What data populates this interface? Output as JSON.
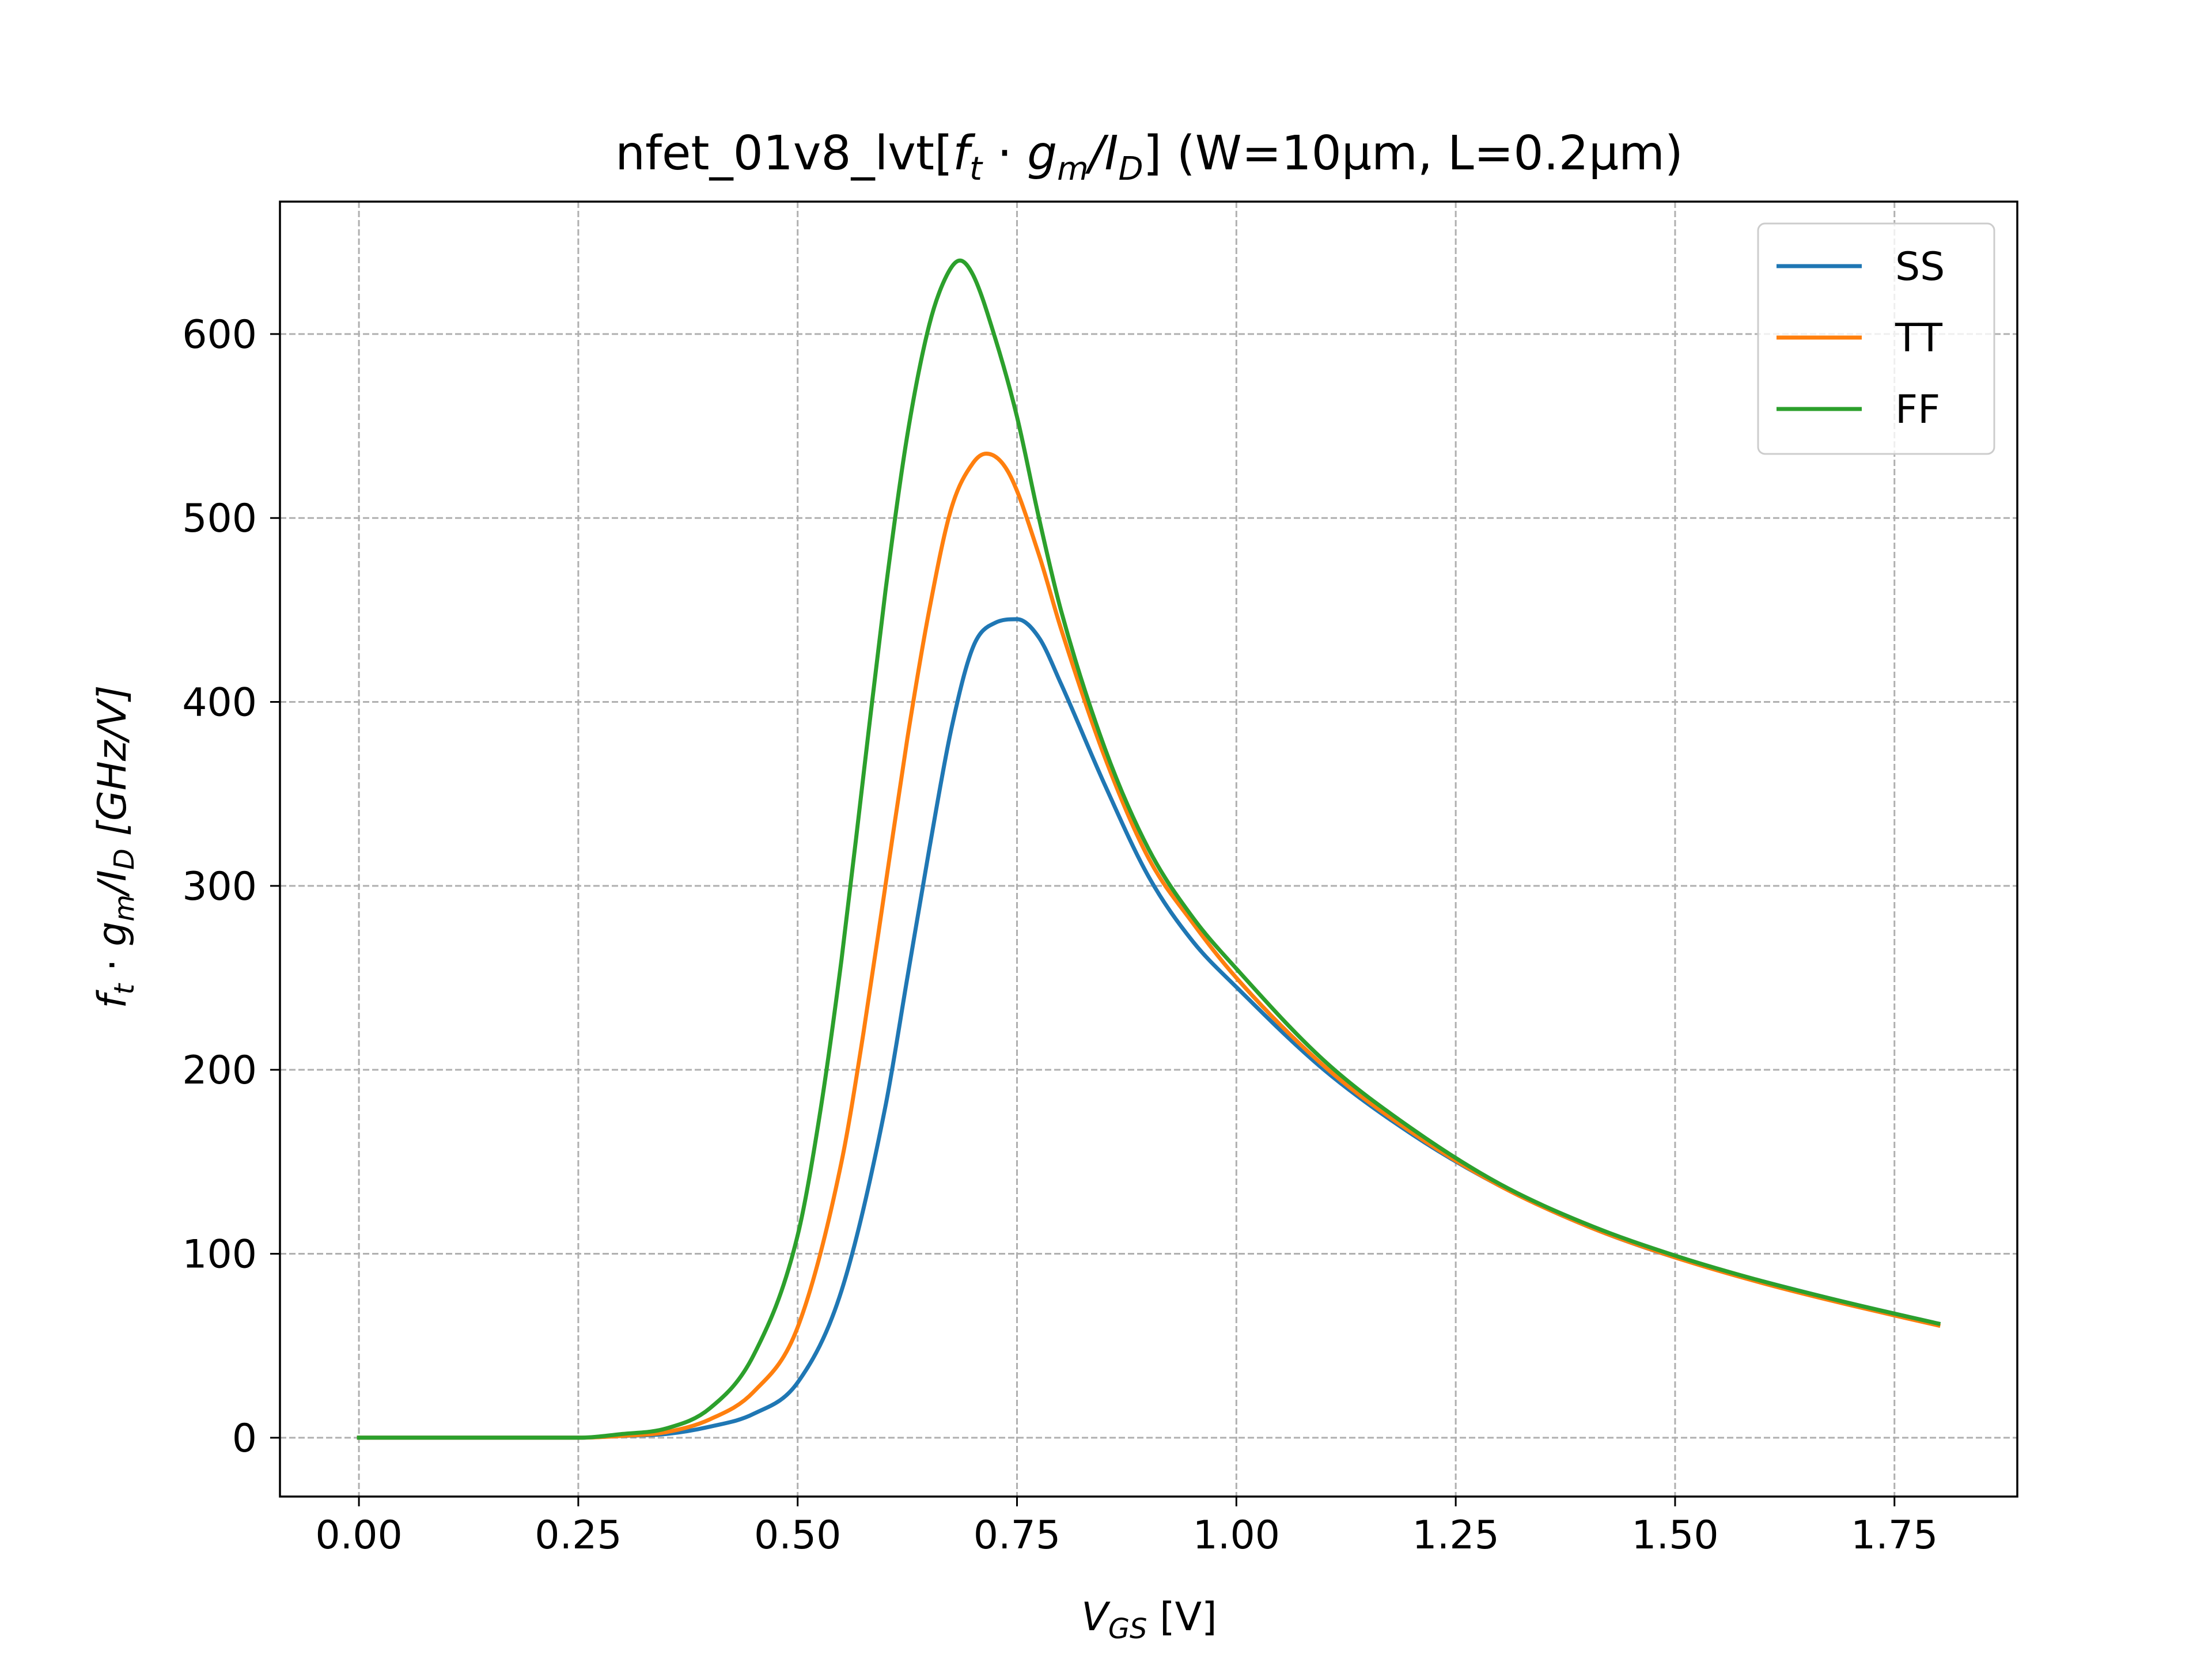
{
  "chart_data": {
    "type": "line",
    "title": "nfet_01v8_lvt[f_t · g_m/I_D] (W=10μm, L=0.2μm)",
    "title_parts": {
      "prefix": "nfet_01v8_lvt[",
      "f": "f",
      "t_sub": "t",
      "dot": " · ",
      "g": "g",
      "m_sub": "m",
      "slash_i": "/I",
      "d_sub": "D",
      "suffix": "] (W=10μm, L=0.2μm)"
    },
    "xlabel": "V_GS [V]",
    "xlabel_parts": {
      "v": "V",
      "sub": "GS",
      "rest": " [V]"
    },
    "ylabel": "f_t · g_m/I_D [GHz/V]",
    "ylabel_parts": {
      "f": "f",
      "t_sub": "t",
      "dot": " · ",
      "g": "g",
      "m_sub": "m",
      "slash_i": "/I",
      "d_sub": "D",
      "unit": " [GHz/V]"
    },
    "xlim": [
      -0.09,
      1.89
    ],
    "ylim": [
      -32,
      672
    ],
    "xticks": [
      0.0,
      0.25,
      0.5,
      0.75,
      1.0,
      1.25,
      1.5,
      1.75
    ],
    "xtick_labels": [
      "0.00",
      "0.25",
      "0.50",
      "0.75",
      "1.00",
      "1.25",
      "1.50",
      "1.75"
    ],
    "yticks": [
      0,
      100,
      200,
      300,
      400,
      500,
      600
    ],
    "ytick_labels": [
      "0",
      "100",
      "200",
      "300",
      "400",
      "500",
      "600"
    ],
    "grid": true,
    "legend_position": "top-right",
    "series": [
      {
        "name": "SS",
        "color": "#1f77b4",
        "x": [
          0.0,
          0.25,
          0.3,
          0.35,
          0.4,
          0.45,
          0.5,
          0.55,
          0.6,
          0.625,
          0.65,
          0.675,
          0.7,
          0.725,
          0.75,
          0.775,
          0.8,
          0.85,
          0.9,
          0.95,
          1.0,
          1.1,
          1.2,
          1.3,
          1.4,
          1.5,
          1.6,
          1.7,
          1.8
        ],
        "y": [
          0,
          0,
          1,
          2,
          6,
          13,
          30,
          80,
          180,
          250,
          320,
          385,
          430,
          443,
          445,
          435,
          410,
          355,
          305,
          270,
          245,
          200,
          165,
          137,
          115,
          98,
          85,
          73,
          62
        ]
      },
      {
        "name": "TT",
        "color": "#ff7f0e",
        "x": [
          0.0,
          0.25,
          0.3,
          0.35,
          0.4,
          0.45,
          0.5,
          0.55,
          0.575,
          0.6,
          0.625,
          0.65,
          0.675,
          0.7,
          0.715,
          0.74,
          0.775,
          0.8,
          0.85,
          0.9,
          0.95,
          1.0,
          1.1,
          1.2,
          1.3,
          1.4,
          1.5,
          1.6,
          1.7,
          1.8
        ],
        "y": [
          0,
          0,
          1,
          3,
          10,
          25,
          60,
          150,
          220,
          300,
          380,
          450,
          505,
          530,
          535,
          525,
          480,
          440,
          370,
          315,
          280,
          250,
          202,
          166,
          137,
          115,
          98,
          84,
          72,
          61
        ]
      },
      {
        "name": "FF",
        "color": "#2ca02c",
        "x": [
          0.0,
          0.25,
          0.3,
          0.35,
          0.4,
          0.45,
          0.5,
          0.525,
          0.55,
          0.575,
          0.6,
          0.625,
          0.65,
          0.67,
          0.685,
          0.7,
          0.725,
          0.75,
          0.775,
          0.8,
          0.85,
          0.9,
          0.95,
          1.0,
          1.1,
          1.2,
          1.3,
          1.4,
          1.5,
          1.6,
          1.7,
          1.8
        ],
        "y": [
          0,
          0,
          2,
          5,
          16,
          45,
          110,
          175,
          260,
          360,
          460,
          545,
          605,
          632,
          640,
          632,
          598,
          555,
          500,
          450,
          375,
          320,
          283,
          255,
          205,
          168,
          138,
          116,
          99,
          85,
          73,
          62
        ]
      }
    ]
  }
}
